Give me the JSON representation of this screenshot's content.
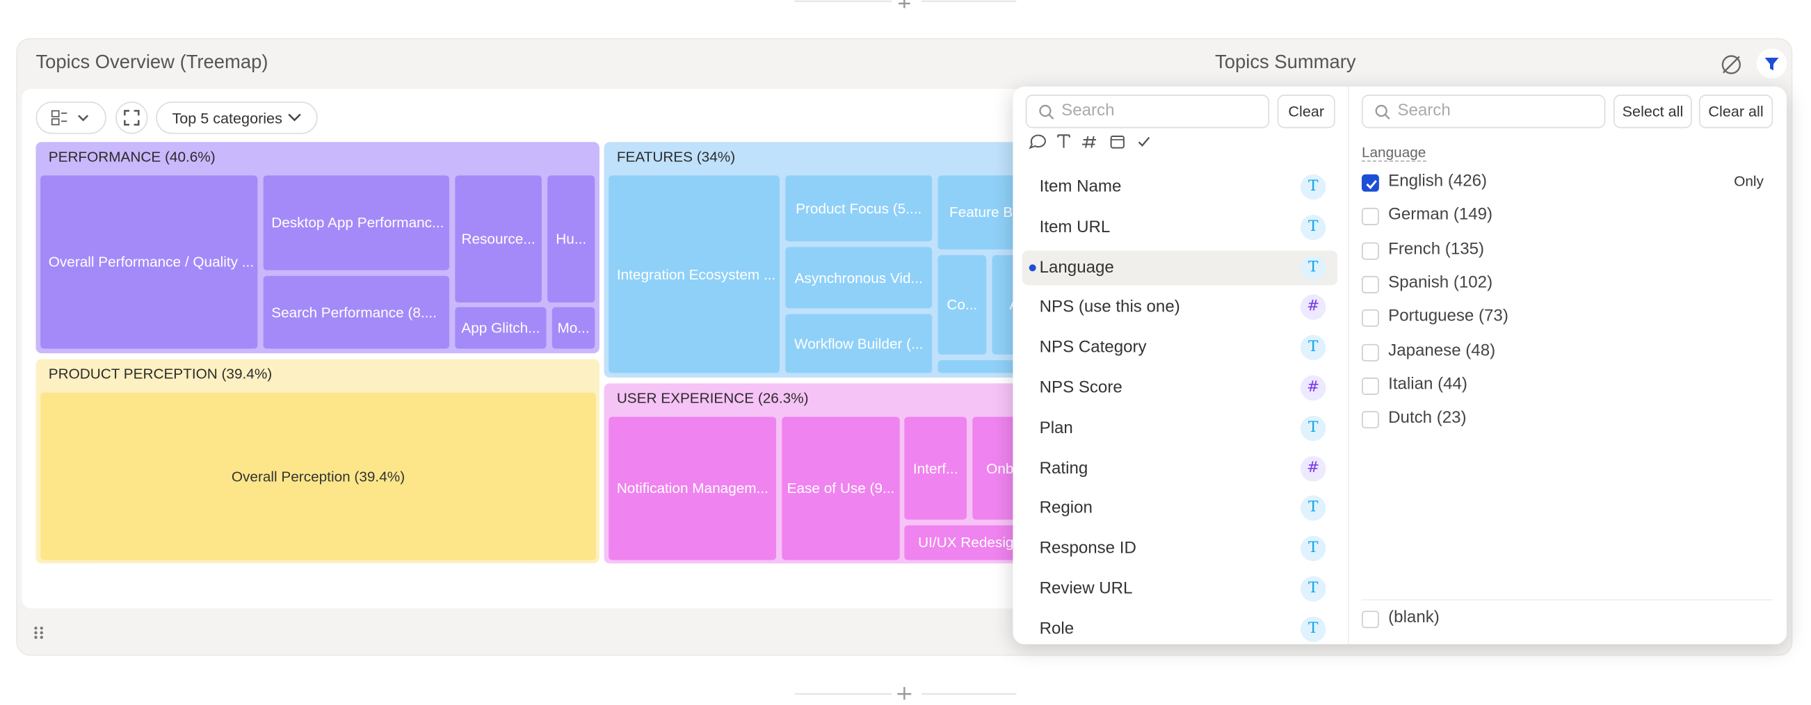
{
  "header": {
    "left_title": "Topics Overview (Treemap)",
    "right_title": "Topics Summary"
  },
  "toolbar": {
    "dropdown": "Top 5 categories"
  },
  "treemap": {
    "groups": [
      {
        "label": "PERFORMANCE (40.6%)",
        "tiles": [
          "Overall Performance / Quality ...",
          "Desktop App Performanc...",
          "Search Performance (8....",
          "Resource...",
          "Hu...",
          "App Glitch...",
          "Mo..."
        ]
      },
      {
        "label": "PRODUCT PERCEPTION (39.4%)",
        "tiles": [
          "Overall Perception (39.4%)"
        ]
      },
      {
        "label": "FEATURES (34%)",
        "tiles": [
          "Integration Ecosystem ...",
          "Product Focus (5....",
          "Feature Bl...",
          "Asynchronous Vid...",
          "Workflow Builder (...",
          "Co...",
          "Al"
        ]
      },
      {
        "label": "USER EXPERIENCE (26.3%)",
        "tiles": [
          "Notification Managem...",
          "Ease of Use (9...",
          "Interf...",
          "Onb...",
          "UI/UX Redesig..."
        ]
      }
    ]
  },
  "field_panel": {
    "search_placeholder": "Search",
    "clear": "Clear",
    "selected": "Language",
    "fields": [
      {
        "name": "Item Name",
        "icon": "T"
      },
      {
        "name": "Item URL",
        "icon": "T"
      },
      {
        "name": "Language",
        "icon": "T"
      },
      {
        "name": "NPS (use this one)",
        "icon": "#"
      },
      {
        "name": "NPS Category",
        "icon": "T"
      },
      {
        "name": "NPS Score",
        "icon": "#"
      },
      {
        "name": "Plan",
        "icon": "T"
      },
      {
        "name": "Rating",
        "icon": "#"
      },
      {
        "name": "Region",
        "icon": "T"
      },
      {
        "name": "Response ID",
        "icon": "T"
      },
      {
        "name": "Review URL",
        "icon": "T"
      },
      {
        "name": "Role",
        "icon": "T"
      }
    ]
  },
  "value_panel": {
    "search_placeholder": "Search",
    "select_all": "Select all",
    "clear_all": "Clear all",
    "field_label": "Language",
    "only": "Only",
    "options": [
      {
        "label": "English (426)",
        "checked": true
      },
      {
        "label": "German (149)",
        "checked": false
      },
      {
        "label": "French (135)",
        "checked": false
      },
      {
        "label": "Spanish (102)",
        "checked": false
      },
      {
        "label": "Portuguese (73)",
        "checked": false
      },
      {
        "label": "Japanese (48)",
        "checked": false
      },
      {
        "label": "Italian (44)",
        "checked": false
      },
      {
        "label": "Dutch (23)",
        "checked": false
      }
    ],
    "blank": "(blank)"
  }
}
